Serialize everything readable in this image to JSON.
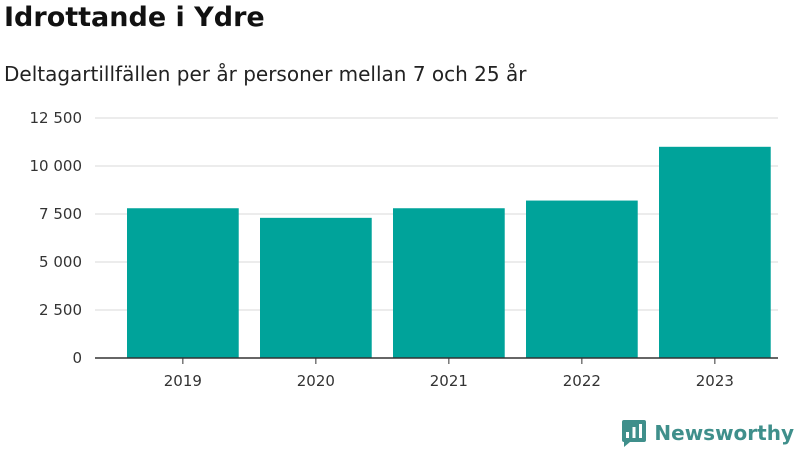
{
  "title": "Idrottande i Ydre",
  "subtitle": "Deltagartillfällen per år personer mellan 7 och 25 år",
  "brand": {
    "name": "Newsworthy",
    "logo_icon": "chart-bubble-icon"
  },
  "colors": {
    "bar": "#00a39a",
    "grid": "#d9d9d9",
    "axis": "#333333",
    "brand": "#3f8f8b"
  },
  "chart_data": {
    "type": "bar",
    "title": "Idrottande i Ydre",
    "subtitle": "Deltagartillfällen per år personer mellan 7 och 25 år",
    "categories": [
      "2019",
      "2020",
      "2021",
      "2022",
      "2023"
    ],
    "values": [
      7800,
      7300,
      7800,
      8200,
      11000
    ],
    "ylim": [
      0,
      12500
    ],
    "yticks": [
      0,
      2500,
      5000,
      7500,
      10000,
      12500
    ],
    "ytick_labels": [
      "0",
      "2 500",
      "5 000",
      "7 500",
      "10 000",
      "12 500"
    ],
    "xlabel": "",
    "ylabel": "",
    "grid": true,
    "legend": "none"
  }
}
